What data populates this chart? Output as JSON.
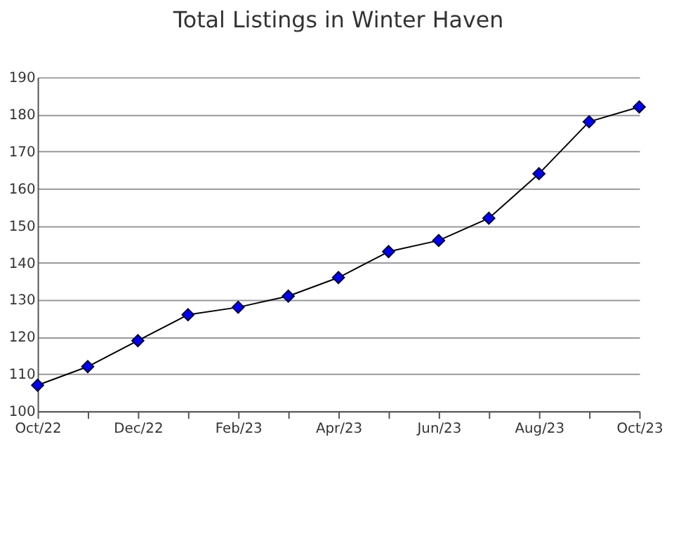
{
  "chart_data": {
    "type": "line",
    "title": "Total Listings in Winter Haven",
    "categories": [
      "Oct/22",
      null,
      "Dec/22",
      null,
      "Feb/23",
      null,
      "Apr/23",
      null,
      "Jun/23",
      null,
      "Aug/23",
      null,
      "Oct/23"
    ],
    "series": [
      {
        "color": "#0000ff",
        "values": [
          107,
          112,
          119,
          126,
          128,
          131,
          136,
          143,
          146,
          152,
          164,
          178,
          182
        ]
      }
    ],
    "ylim": [
      100,
      190
    ],
    "yticks": [
      100,
      110,
      120,
      130,
      140,
      150,
      160,
      170,
      180,
      190
    ],
    "grid": "y",
    "marker": "diamond",
    "line_style": "solid"
  }
}
